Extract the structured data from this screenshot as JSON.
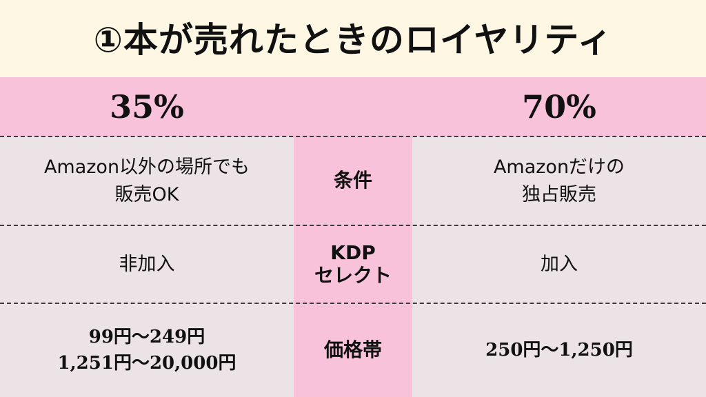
{
  "title": "①本が売れたときのロイヤリティ",
  "header": {
    "left": "35%",
    "right": "70%"
  },
  "rows": [
    {
      "left": [
        "Amazon以外の場所でも",
        "販売OK"
      ],
      "label": [
        "条件"
      ],
      "right": [
        "Amazonだけの",
        "独占販売"
      ]
    },
    {
      "left": [
        "非加入"
      ],
      "label": [
        "KDP",
        "セレクト"
      ],
      "right": [
        "加入"
      ]
    },
    {
      "left": [
        "99円～249円",
        "1,251円～20,000円"
      ],
      "label": [
        "価格帯"
      ],
      "right": [
        "250円～1,250円"
      ]
    }
  ]
}
